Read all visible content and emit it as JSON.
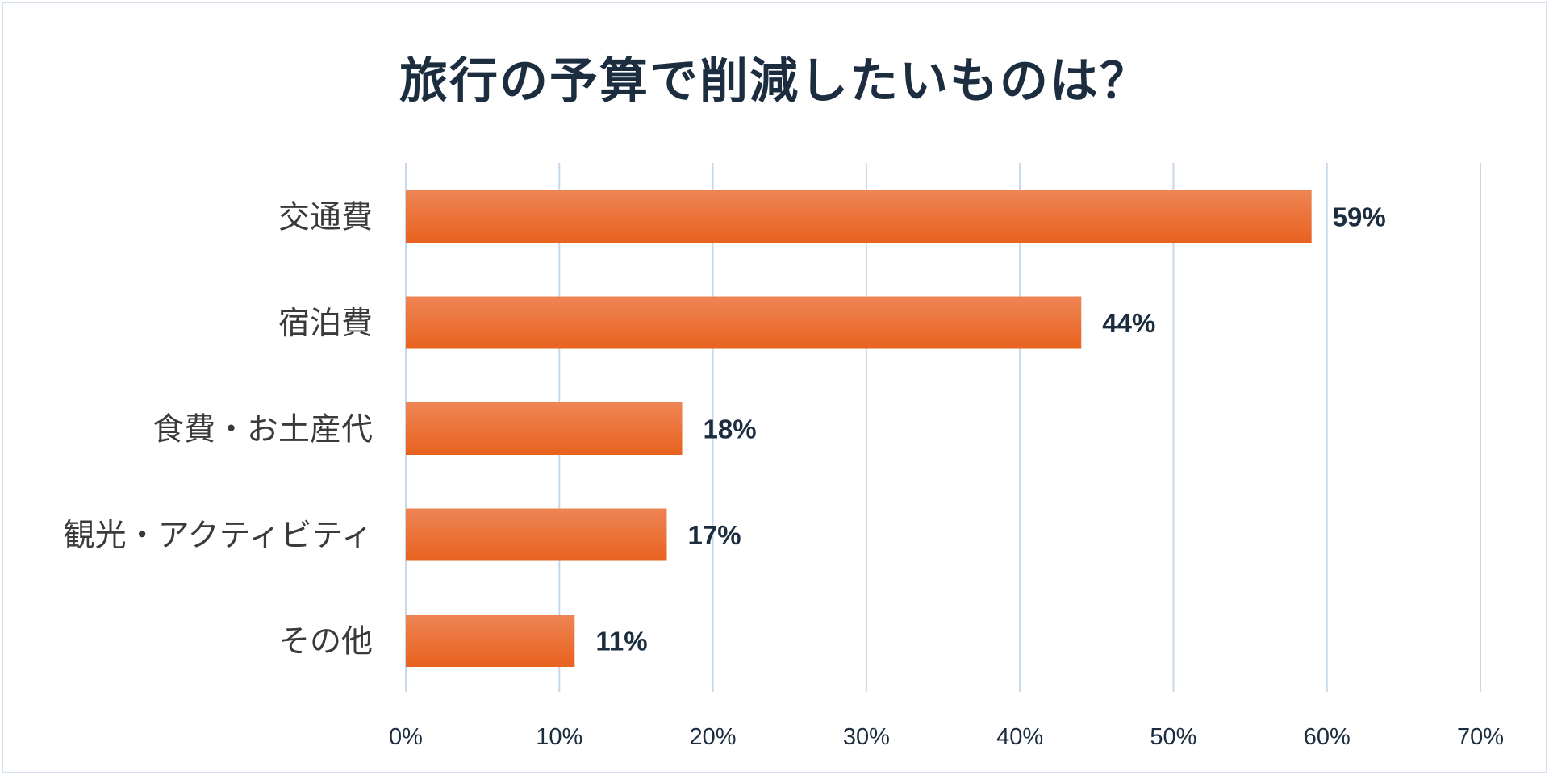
{
  "chart_data": {
    "type": "bar",
    "orientation": "horizontal",
    "title": "旅行の予算で削減したいものは？",
    "categories": [
      "交通費",
      "宿泊費",
      "食費・お土産代",
      "観光・アクティビティ",
      "その他"
    ],
    "values": [
      59,
      44,
      18,
      17,
      11
    ],
    "value_labels": [
      "59%",
      "44%",
      "18%",
      "17%",
      "11%"
    ],
    "xlim": [
      0,
      70
    ],
    "x_ticks": [
      0,
      10,
      20,
      30,
      40,
      50,
      60,
      70
    ],
    "x_tick_labels": [
      "0%",
      "10%",
      "20%",
      "30%",
      "40%",
      "50%",
      "60%",
      "70%"
    ],
    "grid": true,
    "legend": "none",
    "colors": {
      "bar_top": "#ee8555",
      "bar_bottom": "#e8621f",
      "grid": "#c6d9ea",
      "text": "#1d2d40",
      "frame": "#d4e1ec"
    }
  }
}
